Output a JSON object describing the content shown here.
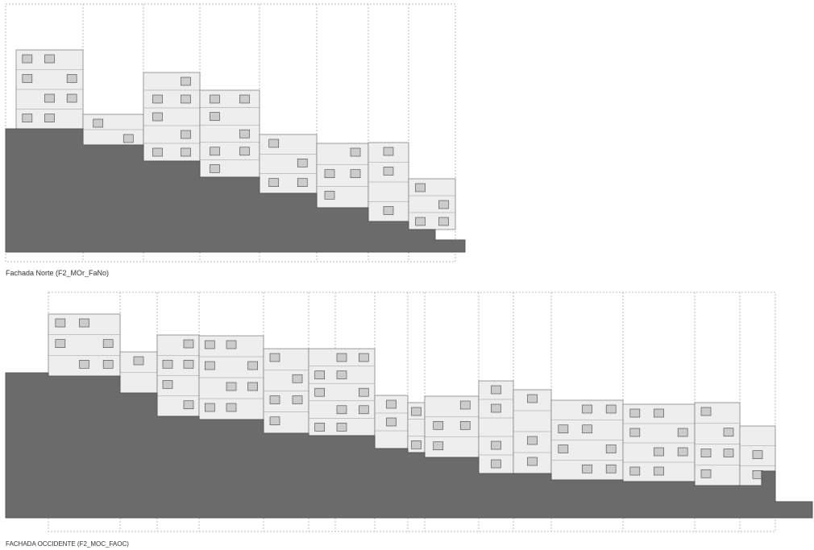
{
  "drawings": [
    {
      "caption": "Fachada Norte (F2_MOr_FaNo)"
    },
    {
      "caption": "FACHADA OCCIDENTE (F2_MOC_FAOC)"
    }
  ]
}
